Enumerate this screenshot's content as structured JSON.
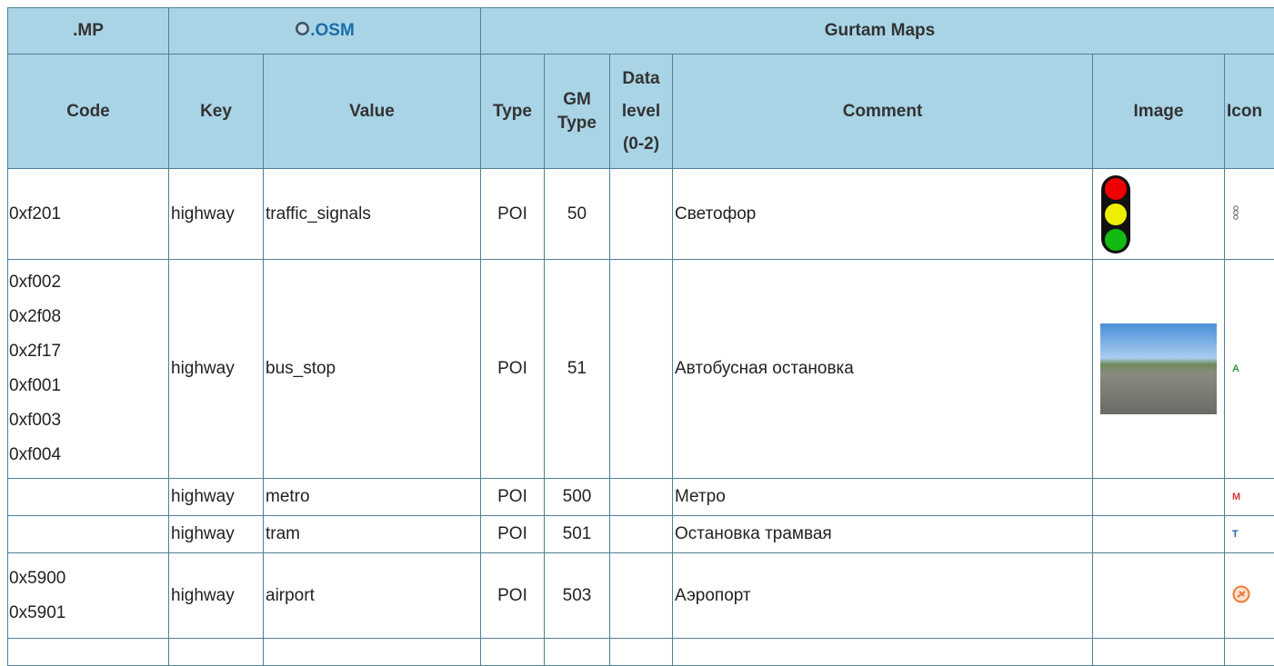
{
  "header_groups": [
    ".MP",
    ".OSM",
    "Gurtam Maps"
  ],
  "columns": [
    "Code",
    "Key",
    "Value",
    "Type",
    "GM Type",
    "Data level (0-2)",
    "Comment",
    "Image",
    "Icon"
  ],
  "rows": [
    {
      "code": [
        "0xf201"
      ],
      "key": "highway",
      "value": "traffic_signals",
      "type": "POI",
      "gm_type": "50",
      "comment": "Светофор"
    },
    {
      "code": [
        "0xf002",
        "0x2f08",
        "0x2f17",
        "0xf001",
        "0xf003",
        "0xf004"
      ],
      "key": "highway",
      "value": "bus_stop",
      "type": "POI",
      "gm_type": "51",
      "comment": "Автобусная остановка",
      "icon": "A"
    },
    {
      "key": "highway",
      "value": "metro",
      "type": "POI",
      "gm_type": "500",
      "comment": "Метро",
      "icon": "M"
    },
    {
      "key": "highway",
      "value": "tram",
      "type": "POI",
      "gm_type": "501",
      "comment": "Остановка трамвая",
      "icon": "T"
    },
    {
      "code": [
        "0x5900",
        "0x5901"
      ],
      "key": "highway",
      "value": "airport",
      "type": "POI",
      "gm_type": "503",
      "comment": "Аэропорт"
    }
  ]
}
